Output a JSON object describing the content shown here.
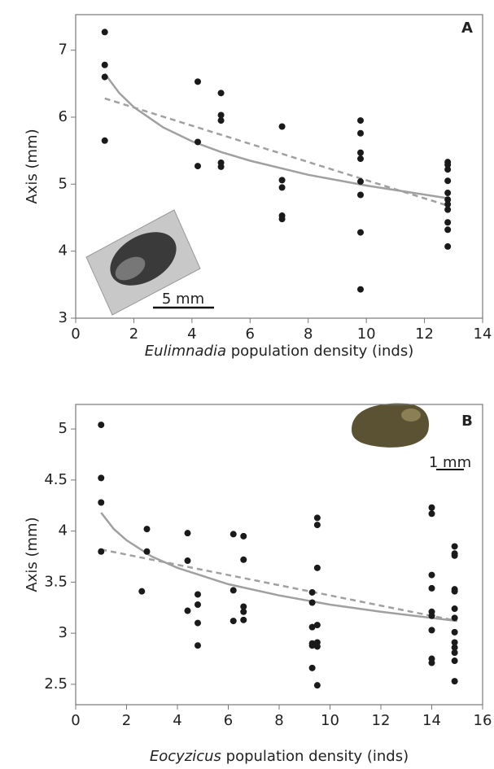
{
  "chart_data": [
    {
      "type": "scatter",
      "panel_label": "A",
      "ylabel": "Axis (mm)",
      "xlabel": [
        "Eulimnadia",
        "population density (inds)"
      ],
      "scale_bar_label": "5 mm",
      "x": [
        1,
        1,
        1,
        1,
        4.2,
        4.2,
        4.2,
        5,
        5,
        5,
        5,
        5,
        7.1,
        7.1,
        7.1,
        7.1,
        7.1,
        9.8,
        9.8,
        9.8,
        9.8,
        9.8,
        9.8,
        9.8,
        9.8,
        12.8,
        12.8,
        12.8,
        12.8,
        12.8,
        12.8,
        12.8,
        12.8,
        12.8,
        12.8,
        12.8
      ],
      "values": [
        7.27,
        6.78,
        6.6,
        5.65,
        6.53,
        5.63,
        5.27,
        6.36,
        6.03,
        5.95,
        5.32,
        5.26,
        5.86,
        5.06,
        4.95,
        4.53,
        4.48,
        5.95,
        5.76,
        5.47,
        5.38,
        5.04,
        4.84,
        4.28,
        3.43,
        5.33,
        5.29,
        5.22,
        5.05,
        4.87,
        4.77,
        4.7,
        4.62,
        4.43,
        4.32,
        4.07
      ],
      "color": "#1a1a1a",
      "fits": [
        {
          "style": "solid",
          "color": "#a0a0a0",
          "x": [
            1,
            1.5,
            2,
            3,
            4,
            5,
            6,
            8,
            10,
            12.8
          ],
          "values": [
            6.65,
            6.36,
            6.15,
            5.85,
            5.64,
            5.48,
            5.35,
            5.14,
            4.98,
            4.79
          ]
        },
        {
          "style": "dashed",
          "color": "#a0a0a0",
          "x": [
            1,
            12.8
          ],
          "values": [
            6.28,
            4.68
          ]
        }
      ],
      "xlim": [
        0,
        14
      ],
      "xticks": [
        0,
        2,
        4,
        6,
        8,
        10,
        12,
        14
      ],
      "ylim": [
        3,
        7.53
      ],
      "yticks": [
        3,
        4,
        5,
        6,
        7
      ]
    },
    {
      "type": "scatter",
      "panel_label": "B",
      "ylabel": "Axis (mm)",
      "xlabel": [
        "Eocyzicus",
        "population density (inds)"
      ],
      "scale_bar_label": "1 mm",
      "x": [
        1,
        1,
        1,
        1,
        2.6,
        2.8,
        2.8,
        4.4,
        4.4,
        4.4,
        4.8,
        4.8,
        4.8,
        4.8,
        6.2,
        6.2,
        6.2,
        6.6,
        6.6,
        6.6,
        6.6,
        6.6,
        9.3,
        9.3,
        9.3,
        9.3,
        9.3,
        9.3,
        9.5,
        9.5,
        9.5,
        9.5,
        9.5,
        9.5,
        9.5,
        14,
        14,
        14,
        14,
        14,
        14,
        14,
        14,
        14,
        14.9,
        14.9,
        14.9,
        14.9,
        14.9,
        14.9,
        14.9,
        14.9,
        14.9,
        14.9,
        14.9,
        14.9,
        14.9
      ],
      "values": [
        5.04,
        4.52,
        4.28,
        3.8,
        3.41,
        4.02,
        3.8,
        3.98,
        3.71,
        3.22,
        3.38,
        3.28,
        3.1,
        2.88,
        3.97,
        3.42,
        3.12,
        3.95,
        3.72,
        3.26,
        3.21,
        3.13,
        3.4,
        3.3,
        3.06,
        2.9,
        2.88,
        2.66,
        4.13,
        4.06,
        3.64,
        3.08,
        2.91,
        2.87,
        2.49,
        4.23,
        4.17,
        3.57,
        3.44,
        3.21,
        3.17,
        3.03,
        2.75,
        2.71,
        3.85,
        3.78,
        3.76,
        3.43,
        3.41,
        3.24,
        3.15,
        3.01,
        2.91,
        2.86,
        2.81,
        2.73,
        2.53
      ],
      "color": "#1a1a1a",
      "fits": [
        {
          "style": "solid",
          "color": "#a0a0a0",
          "x": [
            1,
            1.5,
            2,
            3,
            4,
            6,
            8,
            10,
            12,
            15
          ],
          "values": [
            4.18,
            4.02,
            3.91,
            3.75,
            3.64,
            3.48,
            3.37,
            3.28,
            3.21,
            3.12
          ]
        },
        {
          "style": "dashed",
          "color": "#a0a0a0",
          "x": [
            1,
            15
          ],
          "values": [
            3.82,
            3.12
          ]
        }
      ],
      "xlim": [
        0,
        16
      ],
      "xticks": [
        0,
        2,
        4,
        6,
        8,
        10,
        12,
        14,
        16
      ],
      "ylim": [
        2.3,
        5.24
      ],
      "yticks": [
        2.5,
        3,
        3.5,
        4,
        4.5,
        5
      ]
    }
  ]
}
